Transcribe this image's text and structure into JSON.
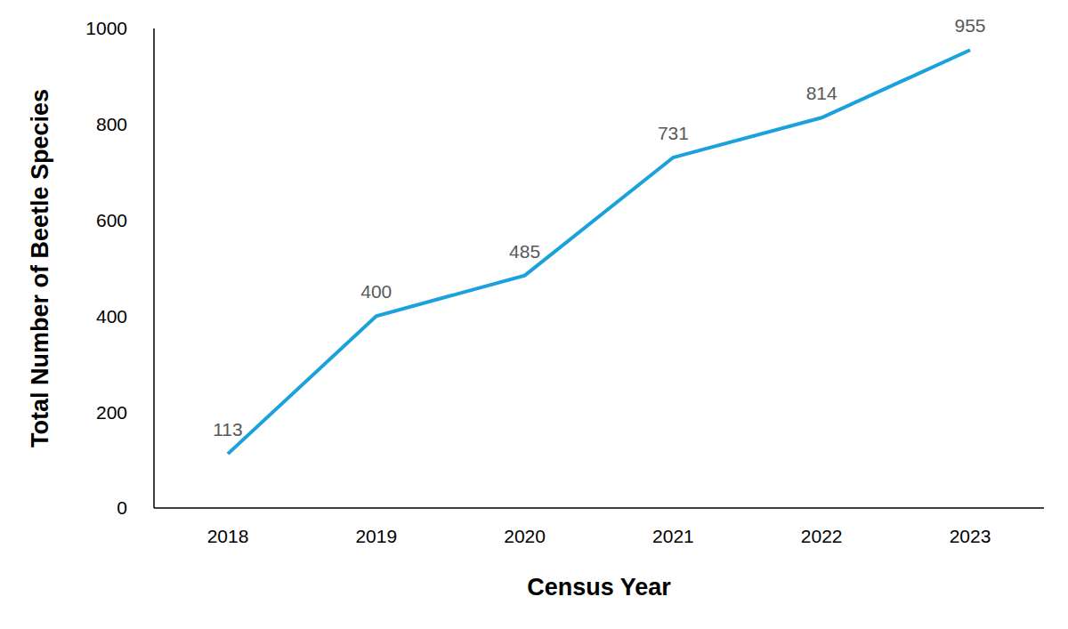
{
  "chart_data": {
    "type": "line",
    "x_label": "Census Year",
    "y_label": "Total Number of Beetle Species",
    "categories": [
      "2018",
      "2019",
      "2020",
      "2021",
      "2022",
      "2023"
    ],
    "values": [
      113,
      400,
      485,
      731,
      814,
      955
    ],
    "color": "#1ba1dc",
    "ylim": [
      0,
      1000
    ],
    "yticks": [
      0,
      200,
      400,
      600,
      800,
      1000
    ],
    "grid": false,
    "data_labels": true
  }
}
